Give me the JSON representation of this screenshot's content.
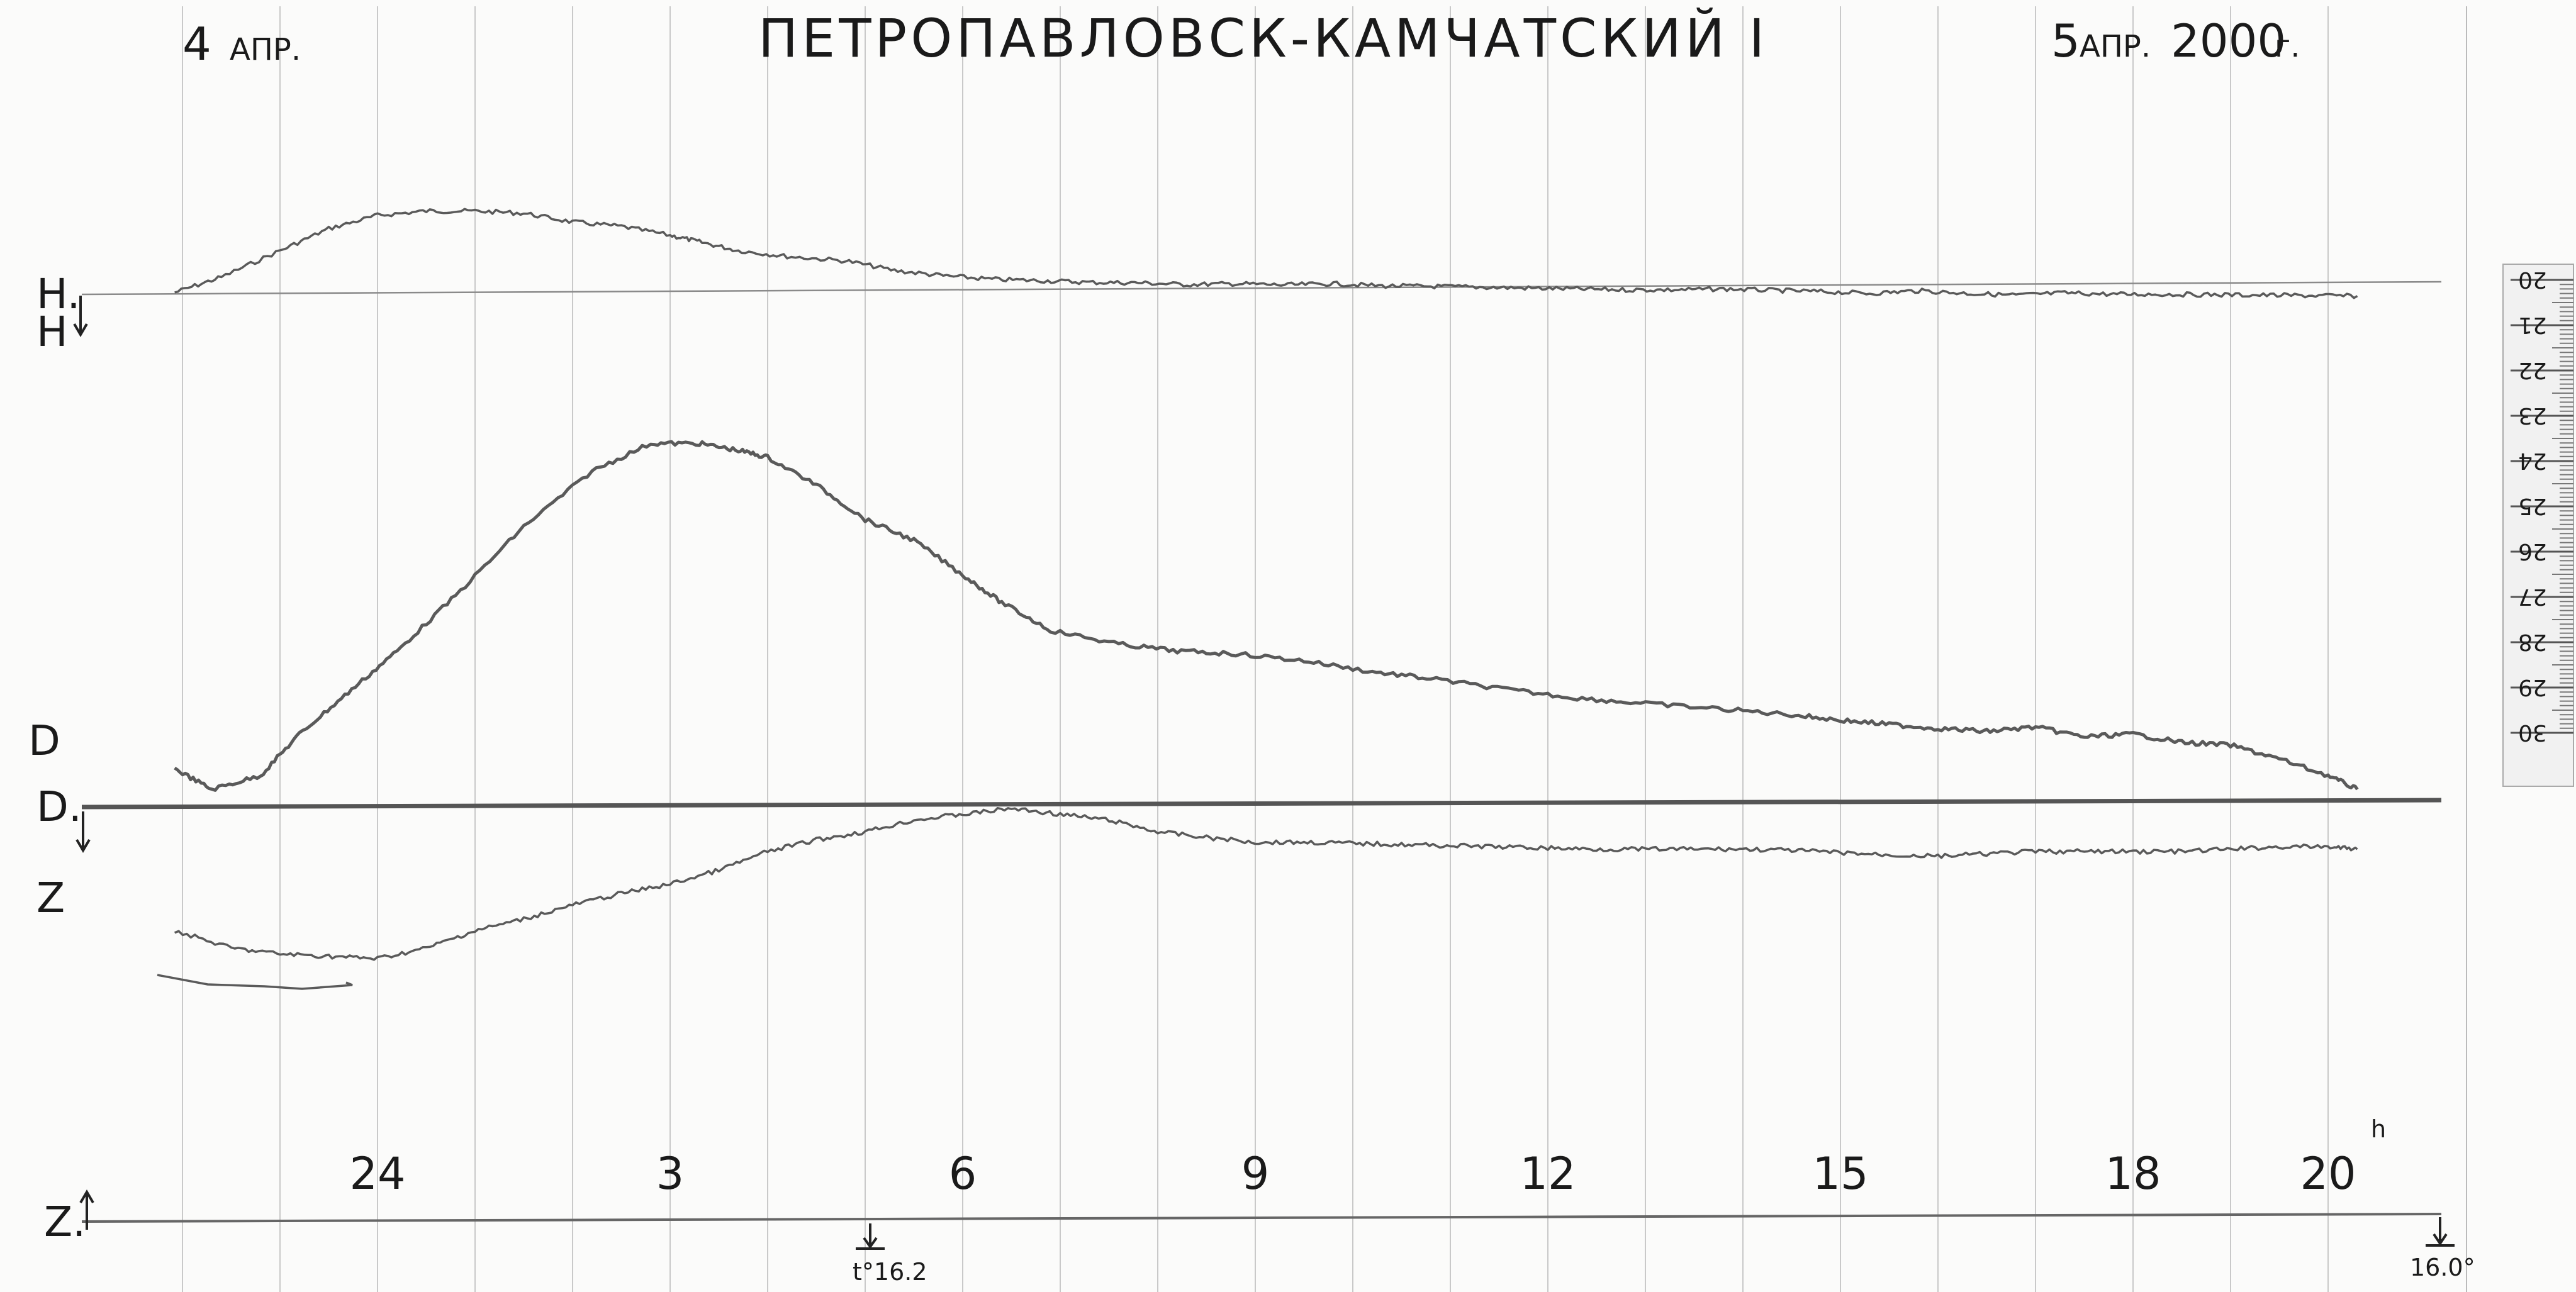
{
  "header": {
    "title": "ПЕТРОПАВЛОВСК-КАМЧАТСКИЙ I",
    "date_left_day": "4",
    "date_left_month": "АПР.",
    "date_right_day": "5",
    "date_right_month": "АПР.",
    "date_right_year": "2000",
    "date_right_suffix": "г."
  },
  "labels": {
    "h0": "H.",
    "h": "H",
    "d": "D",
    "d0": "D.",
    "z": "Z",
    "z0": "Z.",
    "hour_suffix": "h",
    "temp_start": "t°16.2",
    "temp_end": "16.0°"
  },
  "chart_data": {
    "type": "line",
    "title": "ПЕТРОПАВЛОВСК-КАМЧАТСКИЙ I",
    "x_range_hours": [
      21.92,
      20.3
    ],
    "hour_ticks": [
      {
        "label": "24",
        "hour": 0
      },
      {
        "label": "3",
        "hour": 3
      },
      {
        "label": "6",
        "hour": 6
      },
      {
        "label": "9",
        "hour": 9
      },
      {
        "label": "12",
        "hour": 12
      },
      {
        "label": "15",
        "hour": 15
      },
      {
        "label": "18",
        "hour": 18
      },
      {
        "label": "20",
        "hour": 20
      }
    ],
    "hourly_grid": true,
    "scale_ruler": [
      "20",
      "21",
      "22",
      "23",
      "24",
      "25",
      "26",
      "27",
      "28",
      "29",
      "30"
    ],
    "series": [
      {
        "name": "H",
        "x": [
          -2.08,
          -1.6,
          -1.0,
          -0.5,
          0.0,
          0.5,
          1.0,
          1.5,
          2.0,
          2.5,
          3.0,
          3.3,
          3.7,
          4.2,
          4.8,
          5.3,
          5.8,
          6.3,
          6.8,
          7.3,
          7.8,
          8.3,
          8.8,
          9.3,
          9.8,
          10.3,
          10.8,
          11.3,
          11.8,
          12.3,
          12.8,
          13.3,
          13.8,
          14.3,
          14.8,
          15.3,
          15.8,
          16.3,
          16.8,
          17.3,
          17.8,
          18.3,
          18.8,
          19.3,
          19.8,
          20.3
        ],
        "y": [
          0,
          0.35,
          0.95,
          1.45,
          1.75,
          1.85,
          1.85,
          1.8,
          1.6,
          1.5,
          1.3,
          1.15,
          0.95,
          0.82,
          0.72,
          0.5,
          0.38,
          0.3,
          0.27,
          0.23,
          0.22,
          0.18,
          0.2,
          0.17,
          0.2,
          0.15,
          0.14,
          0.12,
          0.1,
          0.08,
          0.06,
          0.06,
          0.08,
          0.05,
          0.02,
          -0.02,
          0.04,
          -0.02,
          -0.06,
          -0.01,
          -0.04,
          -0.04,
          -0.05,
          -0.06,
          -0.07,
          -0.08
        ]
      },
      {
        "name": "D",
        "x": [
          -2.08,
          -1.7,
          -1.2,
          -0.8,
          -0.3,
          0.2,
          0.8,
          1.5,
          2.2,
          2.8,
          3.3,
          3.7,
          4.0,
          4.5,
          5.0,
          5.5,
          6.0,
          6.4,
          6.9,
          7.6,
          8.2,
          8.8,
          9.5,
          10.2,
          10.8,
          11.6,
          12.3,
          13.0,
          13.8,
          14.5,
          15.0,
          15.5,
          16.0,
          16.5,
          17.0,
          17.5,
          18.0,
          18.5,
          19.0,
          19.5,
          20.0,
          20.3
        ],
        "y": [
          0.15,
          0.0,
          0.1,
          0.4,
          0.7,
          1.0,
          1.4,
          1.9,
          2.3,
          2.5,
          2.5,
          2.45,
          2.4,
          2.2,
          1.95,
          1.8,
          1.55,
          1.35,
          1.15,
          1.05,
          1.0,
          0.98,
          0.93,
          0.85,
          0.8,
          0.72,
          0.66,
          0.62,
          0.58,
          0.54,
          0.5,
          0.47,
          0.44,
          0.42,
          0.45,
          0.38,
          0.4,
          0.34,
          0.32,
          0.22,
          0.1,
          0.0
        ]
      },
      {
        "name": "Z",
        "x": [
          -2.08,
          -1.5,
          -1.0,
          -0.5,
          0.0,
          0.5,
          1.0,
          1.5,
          2.0,
          2.5,
          3.0,
          3.5,
          4.0,
          4.5,
          5.0,
          5.5,
          6.0,
          6.5,
          7.0,
          7.5,
          8.0,
          8.5,
          9.0,
          9.5,
          10.0,
          10.5,
          11.0,
          11.5,
          12.0,
          12.5,
          13.0,
          13.5,
          14.0,
          14.5,
          15.0,
          15.5,
          16.0,
          16.5,
          17.0,
          17.5,
          18.0,
          18.5,
          19.0,
          19.5,
          20.0,
          20.3
        ],
        "y": [
          0.3,
          0.15,
          0.1,
          0.08,
          0.06,
          0.15,
          0.3,
          0.4,
          0.52,
          0.62,
          0.7,
          0.82,
          0.98,
          1.08,
          1.15,
          1.25,
          1.3,
          1.35,
          1.3,
          1.25,
          1.15,
          1.1,
          1.06,
          1.06,
          1.05,
          1.04,
          1.03,
          1.02,
          1.01,
          1.0,
          1.0,
          1.0,
          1.0,
          0.99,
          0.97,
          0.95,
          0.94,
          0.96,
          0.98,
          0.98,
          0.98,
          0.98,
          1.0,
          1.02,
          1.02,
          1.0
        ]
      }
    ]
  }
}
